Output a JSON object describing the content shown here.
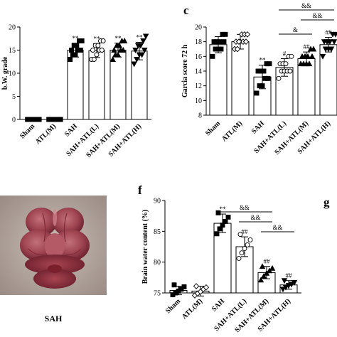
{
  "panels": {
    "c_label": "c",
    "f_label": "f",
    "g_label": "g",
    "photo_caption": "SAH"
  },
  "chart_data": [
    {
      "id": "a",
      "type": "bar",
      "ylabel": "b.W. grade",
      "ylim": [
        0,
        20
      ],
      "yticks": [
        0,
        5,
        10,
        15,
        20
      ],
      "categories": [
        "Sham",
        "ATL(M)",
        "SAH",
        "SAH+ATL(L)",
        "SAH+ATL(M)",
        "SAH+ATL(H)"
      ],
      "values": [
        0,
        0,
        15.0,
        14.9,
        15.0,
        14.8
      ],
      "errors": [
        0,
        0,
        1.5,
        1.5,
        1.5,
        1.9
      ],
      "marker": [
        "square",
        "square",
        "square",
        "circle",
        "triangle",
        "triangle-down"
      ],
      "points": [
        [
          0,
          0,
          0,
          0,
          0,
          0,
          0,
          0,
          0,
          0
        ],
        [
          0,
          0,
          0,
          0,
          0,
          0,
          0,
          0,
          0,
          0
        ],
        [
          13,
          14,
          14,
          15,
          15,
          15,
          16,
          16,
          17,
          17
        ],
        [
          13,
          13,
          14,
          15,
          15,
          15,
          16,
          16,
          17,
          17
        ],
        [
          13,
          14,
          14,
          15,
          15,
          15,
          16,
          16,
          17,
          17
        ],
        [
          12,
          13,
          14,
          14,
          15,
          15,
          16,
          16,
          17,
          18
        ]
      ],
      "annotations": [
        "",
        "",
        "**",
        "**",
        "**",
        "**"
      ]
    },
    {
      "id": "c",
      "type": "bar",
      "ylabel": "Garcia score 72 h",
      "ylim": [
        8,
        20
      ],
      "yticks": [
        8,
        10,
        12,
        14,
        16,
        18,
        20
      ],
      "categories": [
        "Sham",
        "ATL(M)",
        "SAH",
        "SAH+ATL(L)",
        "SAH+ATL(M)",
        "SAH+ATL(H)"
      ],
      "values": [
        17.6,
        18.0,
        13.2,
        14.5,
        15.7,
        17.6
      ],
      "errors": [
        1.1,
        1.0,
        1.6,
        1.2,
        0.9,
        1.0
      ],
      "marker": [
        "square",
        "diamond",
        "square",
        "circle",
        "triangle",
        "triangle-down"
      ],
      "points": [
        [
          16,
          17,
          17,
          17,
          18,
          18,
          18,
          18,
          19,
          19
        ],
        [
          17,
          17,
          18,
          18,
          18,
          18,
          18,
          19,
          19,
          19
        ],
        [
          11,
          12,
          12,
          13,
          13,
          14,
          14,
          14,
          15,
          15
        ],
        [
          13,
          14,
          14,
          14,
          14,
          15,
          15,
          15,
          16,
          16
        ],
        [
          15,
          15,
          15,
          15,
          16,
          16,
          16,
          16,
          17,
          17
        ],
        [
          16,
          17,
          17,
          17,
          18,
          18,
          18,
          18,
          19,
          19
        ]
      ],
      "annotations": [
        "",
        "",
        "**",
        "#",
        "##",
        "##"
      ],
      "brackets": [
        {
          "from": 3,
          "to": 4,
          "label": "&"
        },
        {
          "from": 3,
          "to": 5,
          "label": "&&"
        },
        {
          "from": 4,
          "to": 5,
          "label": "&&"
        }
      ]
    },
    {
      "id": "f",
      "type": "bar",
      "ylabel": "Brain water content (%)",
      "ylim": [
        75,
        90
      ],
      "yticks": [
        75,
        80,
        85,
        90
      ],
      "categories": [
        "Sham",
        "ATL(M)",
        "SAH",
        "SAH+ATL(L)",
        "SAH+ATL(M)",
        "SAH+ATL(H)"
      ],
      "values": [
        75.4,
        75.3,
        86.3,
        82.5,
        78.3,
        76.3
      ],
      "errors": [
        0.7,
        0.8,
        1.5,
        1.6,
        1.0,
        0.7
      ],
      "marker": [
        "square",
        "diamond",
        "square",
        "circle",
        "triangle",
        "triangle-down"
      ],
      "points": [
        [
          74.7,
          75.0,
          75.3,
          75.6,
          76.0,
          76.3
        ],
        [
          74.6,
          74.9,
          75.2,
          75.6,
          75.9,
          76.1
        ],
        [
          84.6,
          85.4,
          86.0,
          86.6,
          87.3,
          88.0
        ],
        [
          80.6,
          81.5,
          82.2,
          82.8,
          83.6,
          84.5
        ],
        [
          77.1,
          77.7,
          78.2,
          78.6,
          79.0,
          79.3
        ],
        [
          75.6,
          75.9,
          76.2,
          76.4,
          76.7,
          77.0
        ]
      ],
      "annotations": [
        "",
        "",
        "**",
        "##",
        "##",
        "##"
      ],
      "brackets": [
        {
          "from": 2,
          "to": 4,
          "label": "&&"
        },
        {
          "from": 3,
          "to": 4,
          "label": "&&"
        },
        {
          "from": 4,
          "to": 5,
          "label": "&&"
        }
      ]
    }
  ]
}
